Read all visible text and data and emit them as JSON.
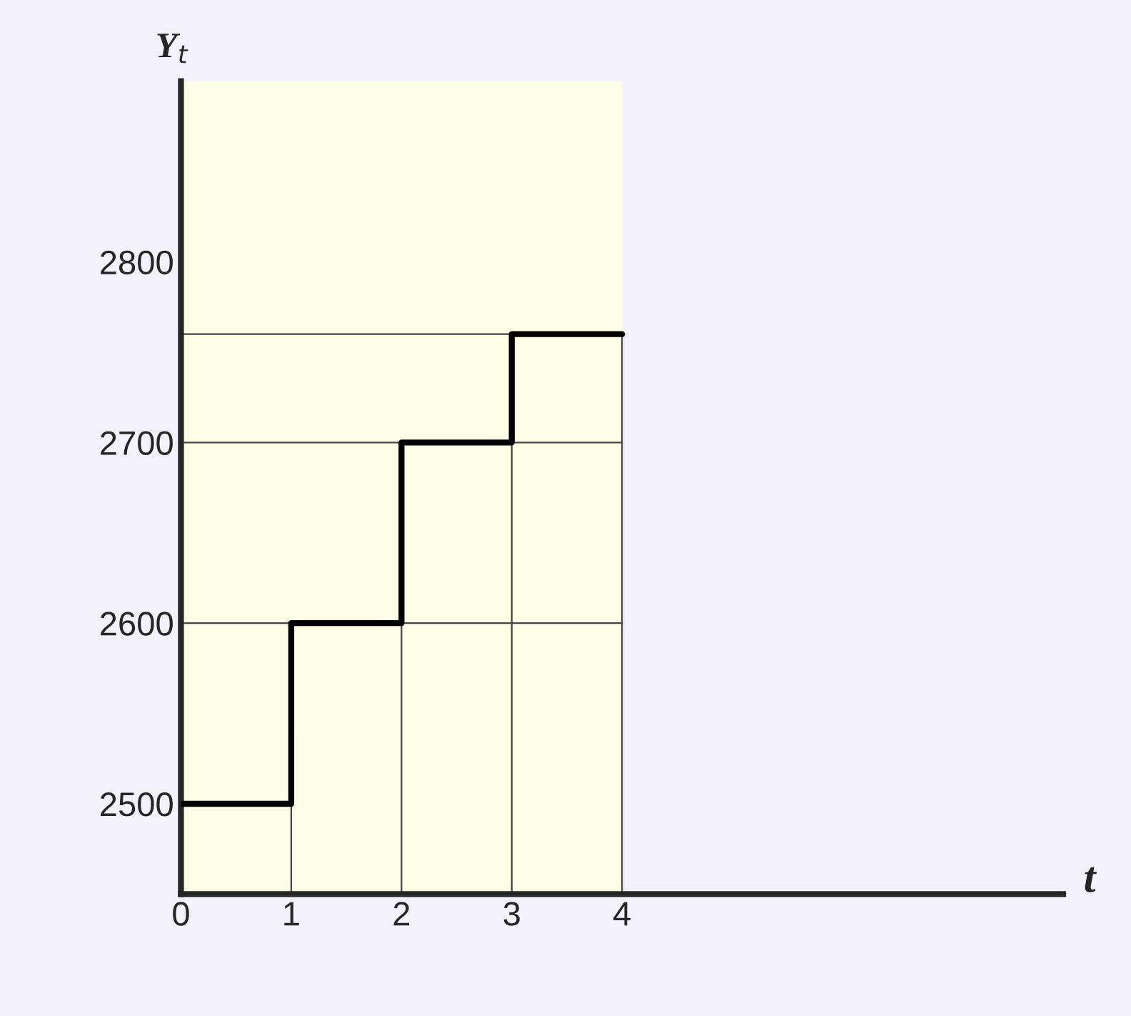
{
  "chart_data": {
    "type": "step",
    "xlabel": "t",
    "ylabel": "Y$_{t}$",
    "x": [
      0,
      1,
      2,
      3,
      4
    ],
    "series": [
      {
        "color": "#000000",
        "values": [
          2500,
          2600,
          2700,
          2760,
          2760
        ]
      }
    ],
    "xlim": [
      0,
      8
    ],
    "xticks": [
      0,
      1,
      2,
      3,
      4
    ],
    "ylim": [
      2450,
      2900
    ],
    "yticks": [
      2500,
      2600,
      2700,
      2800
    ],
    "bands": [
      {
        "axis": "x",
        "from": 0,
        "to": 4,
        "color": "#fefee6"
      }
    ],
    "ref_lines": [
      {
        "axis": "y",
        "value": 2600
      },
      {
        "axis": "y",
        "value": 2700
      },
      {
        "axis": "y",
        "value": 2760
      },
      {
        "axis": "x",
        "value": 1
      },
      {
        "axis": "x",
        "value": 2
      },
      {
        "axis": "x",
        "value": 3
      },
      {
        "axis": "x",
        "value": 4
      }
    ],
    "grid": false,
    "legend": false
  }
}
